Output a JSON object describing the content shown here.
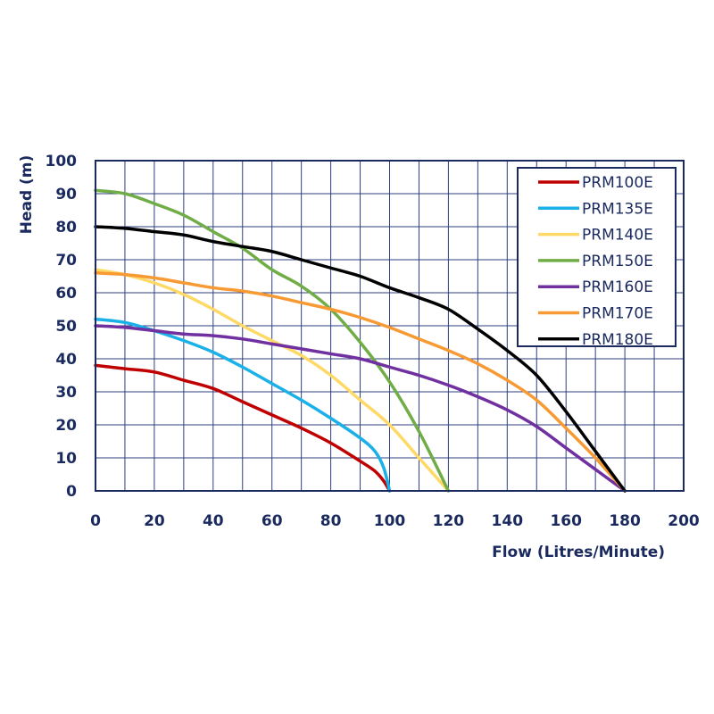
{
  "chart_data": {
    "type": "line",
    "title": "",
    "xlabel": "Flow (Litres/Minute)",
    "ylabel": "Head (m)",
    "xlim": [
      0,
      200
    ],
    "ylim": [
      0,
      100
    ],
    "x_ticks": [
      0,
      20,
      40,
      60,
      80,
      100,
      120,
      140,
      160,
      180,
      200
    ],
    "y_ticks": [
      0,
      10,
      20,
      30,
      40,
      50,
      60,
      70,
      80,
      90,
      100
    ],
    "grid": true,
    "grid_step_x": 10,
    "grid_step_y": 10,
    "legend_position": "upper right",
    "series": [
      {
        "name": "PRM100E",
        "color": "#c00000",
        "x": [
          0,
          10,
          20,
          30,
          40,
          50,
          60,
          70,
          80,
          90,
          95,
          98,
          100
        ],
        "y": [
          38,
          37,
          36,
          33.5,
          31,
          27,
          23,
          19,
          14.5,
          9,
          6,
          3,
          0
        ]
      },
      {
        "name": "PRM135E",
        "color": "#1ab0e8",
        "x": [
          0,
          10,
          20,
          30,
          40,
          50,
          60,
          70,
          80,
          90,
          95,
          98,
          100
        ],
        "y": [
          52,
          51,
          48.5,
          45.5,
          42,
          37.5,
          32.5,
          27.5,
          22,
          16,
          12,
          7,
          0
        ]
      },
      {
        "name": "PRM140E",
        "color": "#ffd966",
        "x": [
          0,
          10,
          20,
          30,
          40,
          50,
          60,
          70,
          80,
          90,
          100,
          110,
          120
        ],
        "y": [
          67,
          65.5,
          63,
          59.5,
          55,
          50,
          45.5,
          41,
          35,
          27.5,
          20,
          10,
          0
        ]
      },
      {
        "name": "PRM150E",
        "color": "#70ad47",
        "x": [
          0,
          10,
          20,
          30,
          40,
          50,
          60,
          70,
          80,
          90,
          100,
          110,
          120
        ],
        "y": [
          91,
          90,
          87,
          83.5,
          78.5,
          73.5,
          67,
          62,
          55,
          45,
          33,
          18,
          0
        ]
      },
      {
        "name": "PRM160E",
        "color": "#7030a0",
        "x": [
          0,
          10,
          20,
          30,
          40,
          50,
          60,
          70,
          80,
          90,
          100,
          110,
          120,
          130,
          140,
          150,
          160,
          170,
          180
        ],
        "y": [
          50,
          49.5,
          48.5,
          47.5,
          47,
          46,
          44.5,
          43,
          41.5,
          40,
          37.5,
          35,
          32,
          28.5,
          24.5,
          19.5,
          13,
          6.5,
          0
        ]
      },
      {
        "name": "PRM170E",
        "color": "#f79a33",
        "x": [
          0,
          10,
          20,
          30,
          40,
          50,
          60,
          70,
          80,
          90,
          100,
          110,
          120,
          130,
          140,
          150,
          160,
          170,
          180
        ],
        "y": [
          66,
          65.5,
          64.5,
          63,
          61.5,
          60.5,
          59,
          57,
          55,
          52.5,
          49.5,
          46,
          42.5,
          38.5,
          33.5,
          27.5,
          19,
          10,
          0
        ]
      },
      {
        "name": "PRM180E",
        "color": "#000000",
        "x": [
          0,
          10,
          20,
          30,
          40,
          50,
          60,
          70,
          80,
          90,
          100,
          110,
          120,
          130,
          140,
          150,
          160,
          170,
          180
        ],
        "y": [
          80,
          79.5,
          78.5,
          77.5,
          75.5,
          74,
          72.5,
          70,
          67.5,
          65,
          61.5,
          58.5,
          55,
          49,
          42.5,
          35,
          24,
          12,
          0
        ]
      }
    ]
  },
  "colors": {
    "axis": "#1b2a5e",
    "grid": "#2e3f7f",
    "background": "#ffffff"
  }
}
